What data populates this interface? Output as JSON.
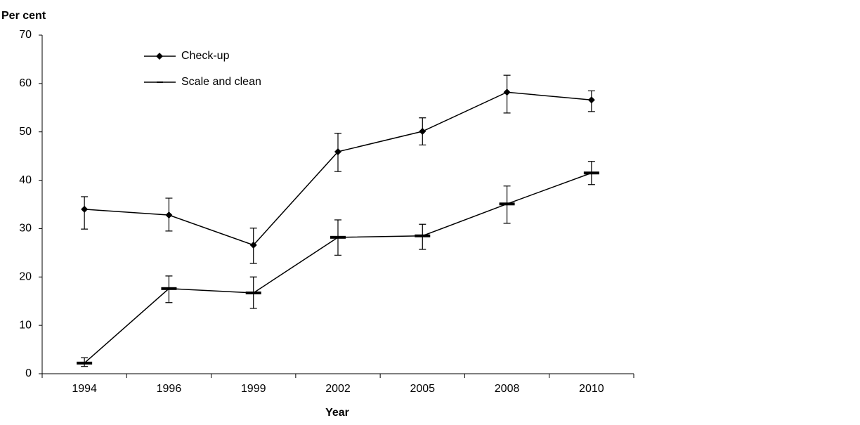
{
  "chart_data": {
    "type": "line",
    "y_label": "Per cent",
    "x_label": "Year",
    "categories": [
      "1994",
      "1996",
      "1999",
      "2002",
      "2005",
      "2008",
      "2010"
    ],
    "series": [
      {
        "name": "Check-up",
        "color": "#000000",
        "marker": "diamond",
        "values": [
          34.0,
          32.8,
          26.6,
          45.9,
          50.1,
          58.2,
          56.6
        ],
        "lower": [
          29.9,
          29.5,
          22.8,
          41.8,
          47.3,
          53.9,
          54.2
        ],
        "upper": [
          36.6,
          36.3,
          30.1,
          49.7,
          52.9,
          61.7,
          58.5
        ]
      },
      {
        "name": "Scale and clean",
        "color": "#000000",
        "marker": "dash",
        "values": [
          2.2,
          17.6,
          16.7,
          28.2,
          28.5,
          35.1,
          41.5
        ],
        "lower": [
          1.5,
          14.7,
          13.5,
          24.5,
          25.7,
          31.1,
          39.1
        ],
        "upper": [
          3.3,
          20.2,
          20.0,
          31.8,
          30.9,
          38.8,
          43.9
        ]
      }
    ],
    "ylim": [
      0,
      70
    ],
    "yticks": [
      0,
      10,
      20,
      30,
      40,
      50,
      60,
      70
    ],
    "grid": false,
    "legend": "top-left"
  }
}
